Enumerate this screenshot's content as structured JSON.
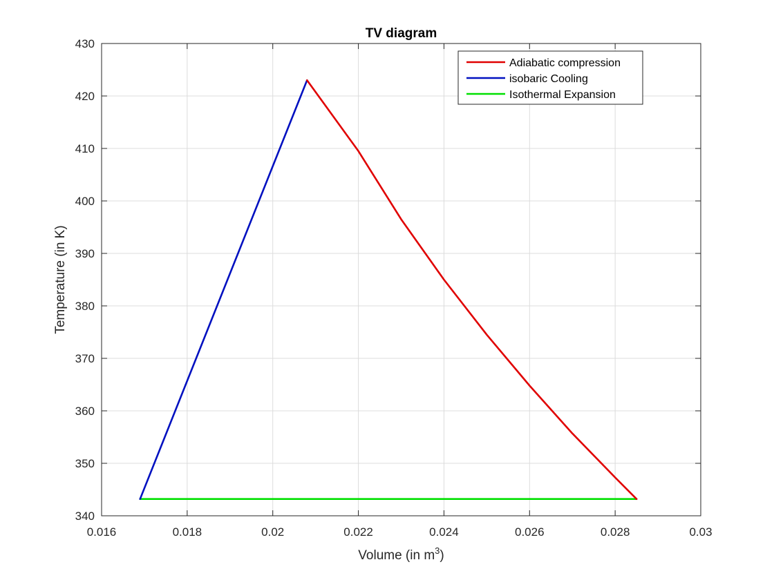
{
  "chart_data": {
    "type": "line",
    "title": "TV diagram",
    "xlabel": "Volume (in m",
    "xlabel_superscript": "3",
    "xlabel_suffix": ")",
    "ylabel": "Temperature (in K)",
    "xlim": [
      0.016,
      0.03
    ],
    "ylim": [
      340,
      430
    ],
    "x_ticks": [
      0.016,
      0.018,
      0.02,
      0.022,
      0.024,
      0.026,
      0.028,
      0.03
    ],
    "x_tick_labels": [
      "0.016",
      "0.018",
      "0.02",
      "0.022",
      "0.024",
      "0.026",
      "0.028",
      "0.03"
    ],
    "y_ticks": [
      340,
      350,
      360,
      370,
      380,
      390,
      400,
      410,
      420,
      430
    ],
    "y_tick_labels": [
      "340",
      "350",
      "360",
      "370",
      "380",
      "390",
      "400",
      "410",
      "420",
      "430"
    ],
    "grid": true,
    "legend_position": "top-right",
    "series": [
      {
        "name": "Adiabatic compression",
        "color": "#e00000",
        "x": [
          0.0208,
          0.022,
          0.023,
          0.024,
          0.025,
          0.026,
          0.027,
          0.028,
          0.0285
        ],
        "y": [
          423.0,
          409.5,
          396.5,
          385.0,
          374.5,
          364.8,
          355.7,
          347.3,
          343.2
        ]
      },
      {
        "name": "isobaric Cooling",
        "color": "#0010c0",
        "x": [
          0.0169,
          0.0208
        ],
        "y": [
          343.2,
          423.0
        ]
      },
      {
        "name": "Isothermal Expansion",
        "color": "#00e000",
        "x": [
          0.0169,
          0.0285
        ],
        "y": [
          343.2,
          343.2
        ]
      }
    ]
  }
}
